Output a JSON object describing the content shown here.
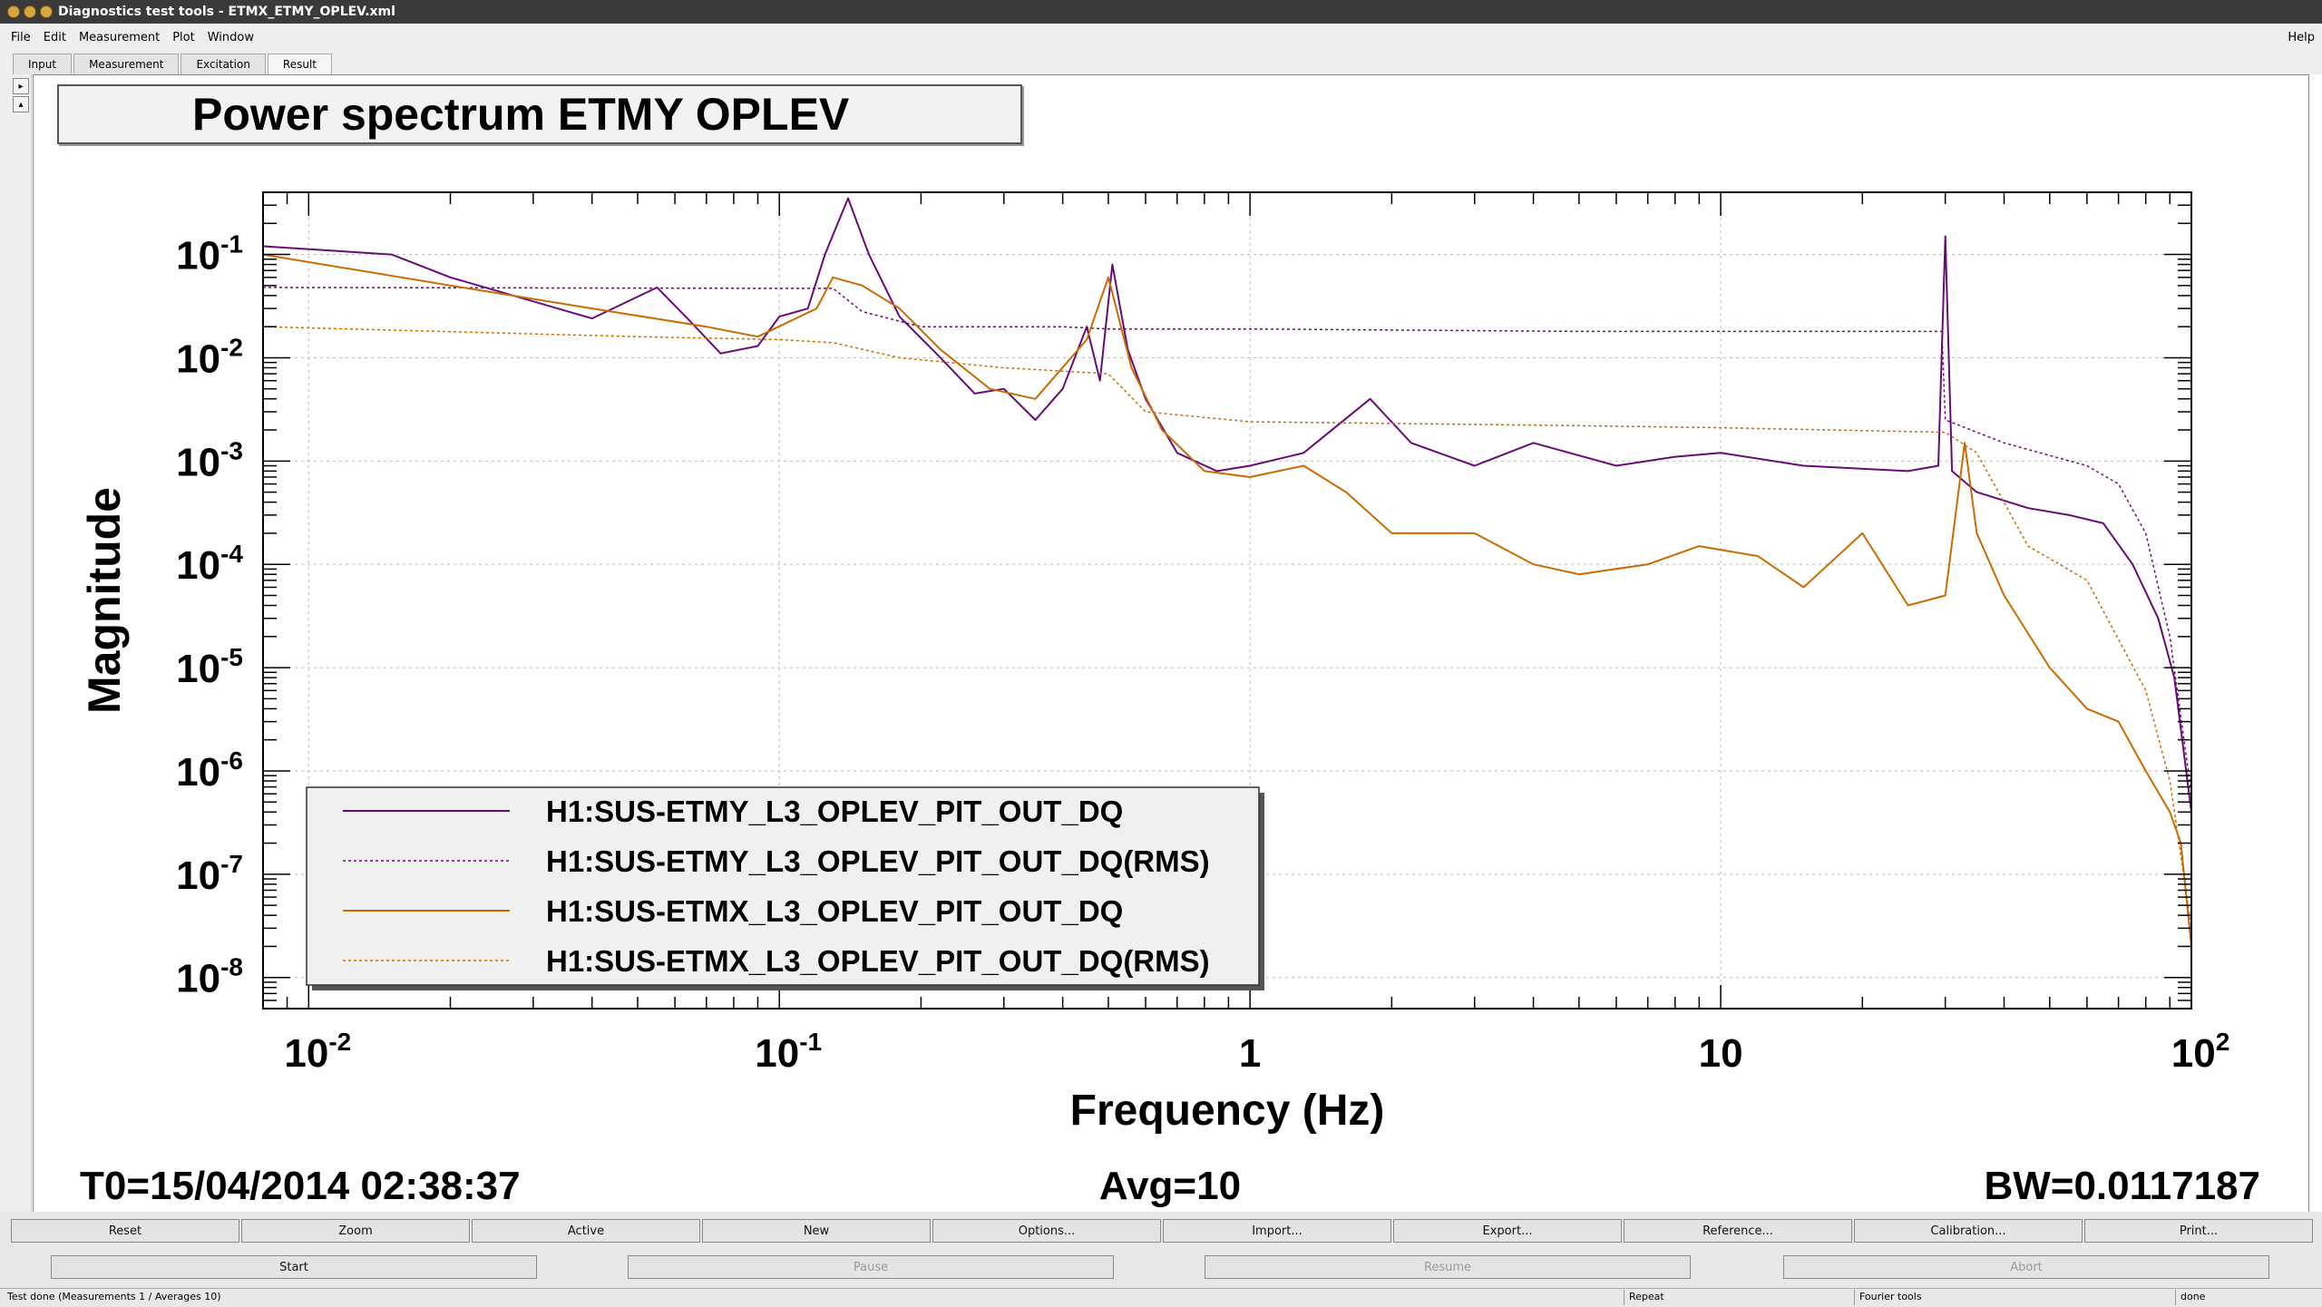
{
  "window": {
    "title": "Diagnostics test tools - ETMX_ETMY_OPLEV.xml"
  },
  "menu": {
    "items": [
      "File",
      "Edit",
      "Measurement",
      "Plot",
      "Window"
    ],
    "help": "Help"
  },
  "tabs": [
    "Input",
    "Measurement",
    "Excitation",
    "Result"
  ],
  "plot": {
    "title": "Power spectrum ETMY OPLEV",
    "footer": {
      "t0": "T0=15/04/2014 02:38:37",
      "avg": "Avg=10",
      "bw": "BW=0.0117187"
    }
  },
  "chart_data": {
    "type": "line",
    "title": "Power spectrum ETMY OPLEV",
    "xlabel": "Frequency (Hz)",
    "ylabel": "Magnitude",
    "xscale": "log",
    "yscale": "log",
    "xlim": [
      0.008,
      100
    ],
    "ylim": [
      5e-09,
      0.4
    ],
    "grid": true,
    "legend_position": "bottom-left",
    "x_ticks": [
      {
        "value": 0.01,
        "base": "10",
        "exp": "-2"
      },
      {
        "value": 0.1,
        "base": "10",
        "exp": "-1"
      },
      {
        "value": 1,
        "base": "1",
        "exp": ""
      },
      {
        "value": 10,
        "base": "10",
        "exp": ""
      },
      {
        "value": 100,
        "base": "10",
        "exp": "2"
      }
    ],
    "y_ticks": [
      {
        "value": 0.1,
        "base": "10",
        "exp": "-1"
      },
      {
        "value": 0.01,
        "base": "10",
        "exp": "-2"
      },
      {
        "value": 0.001,
        "base": "10",
        "exp": "-3"
      },
      {
        "value": 0.0001,
        "base": "10",
        "exp": "-4"
      },
      {
        "value": 1e-05,
        "base": "10",
        "exp": "-5"
      },
      {
        "value": 1e-06,
        "base": "10",
        "exp": "-6"
      },
      {
        "value": 1e-07,
        "base": "10",
        "exp": "-7"
      },
      {
        "value": 1e-08,
        "base": "10",
        "exp": "-8"
      }
    ],
    "series": [
      {
        "name": "H1:SUS-ETMY_L3_OPLEV_PIT_OUT_DQ",
        "color": "#6a0a78",
        "dash": false,
        "width": 2,
        "points": [
          [
            0.008,
            0.12
          ],
          [
            0.015,
            0.1
          ],
          [
            0.02,
            0.06
          ],
          [
            0.04,
            0.024
          ],
          [
            0.055,
            0.048
          ],
          [
            0.065,
            0.022
          ],
          [
            0.075,
            0.011
          ],
          [
            0.09,
            0.013
          ],
          [
            0.1,
            0.025
          ],
          [
            0.115,
            0.03
          ],
          [
            0.125,
            0.1
          ],
          [
            0.14,
            0.35
          ],
          [
            0.155,
            0.1
          ],
          [
            0.18,
            0.025
          ],
          [
            0.22,
            0.01
          ],
          [
            0.26,
            0.0045
          ],
          [
            0.3,
            0.005
          ],
          [
            0.35,
            0.0025
          ],
          [
            0.4,
            0.005
          ],
          [
            0.45,
            0.02
          ],
          [
            0.48,
            0.006
          ],
          [
            0.51,
            0.08
          ],
          [
            0.55,
            0.012
          ],
          [
            0.6,
            0.004
          ],
          [
            0.7,
            0.0012
          ],
          [
            0.85,
            0.0008
          ],
          [
            1,
            0.0009
          ],
          [
            1.3,
            0.0012
          ],
          [
            1.8,
            0.004
          ],
          [
            2.2,
            0.0015
          ],
          [
            3,
            0.0009
          ],
          [
            4,
            0.0015
          ],
          [
            6,
            0.0009
          ],
          [
            8,
            0.0011
          ],
          [
            10,
            0.0012
          ],
          [
            15,
            0.0009
          ],
          [
            25,
            0.0008
          ],
          [
            29,
            0.0009
          ],
          [
            30,
            0.15
          ],
          [
            31,
            0.0008
          ],
          [
            35,
            0.0005
          ],
          [
            45,
            0.00035
          ],
          [
            55,
            0.0003
          ],
          [
            65,
            0.00025
          ],
          [
            75,
            0.0001
          ],
          [
            85,
            3e-05
          ],
          [
            92,
            8e-06
          ],
          [
            100,
            4e-07
          ]
        ]
      },
      {
        "name": "H1:SUS-ETMY_L3_OPLEV_PIT_OUT_DQ(RMS)",
        "color": "#6a0a78",
        "dash": true,
        "width": 1.5,
        "points": [
          [
            0.008,
            0.048
          ],
          [
            0.1,
            0.047
          ],
          [
            0.13,
            0.047
          ],
          [
            0.15,
            0.028
          ],
          [
            0.2,
            0.02
          ],
          [
            0.4,
            0.02
          ],
          [
            0.5,
            0.019
          ],
          [
            1,
            0.019
          ],
          [
            5,
            0.018
          ],
          [
            10,
            0.018
          ],
          [
            29.5,
            0.018
          ],
          [
            30,
            0.0025
          ],
          [
            40,
            0.0015
          ],
          [
            60,
            0.0009
          ],
          [
            70,
            0.0006
          ],
          [
            80,
            0.0002
          ],
          [
            90,
            2e-05
          ],
          [
            100,
            6e-07
          ]
        ]
      },
      {
        "name": "H1:SUS-ETMX_L3_OPLEV_PIT_OUT_DQ",
        "color": "#cc6a00",
        "dash": false,
        "width": 2,
        "points": [
          [
            0.008,
            0.1
          ],
          [
            0.02,
            0.05
          ],
          [
            0.04,
            0.03
          ],
          [
            0.07,
            0.02
          ],
          [
            0.09,
            0.016
          ],
          [
            0.12,
            0.03
          ],
          [
            0.13,
            0.06
          ],
          [
            0.15,
            0.05
          ],
          [
            0.18,
            0.03
          ],
          [
            0.22,
            0.012
          ],
          [
            0.28,
            0.005
          ],
          [
            0.35,
            0.004
          ],
          [
            0.45,
            0.015
          ],
          [
            0.5,
            0.06
          ],
          [
            0.56,
            0.008
          ],
          [
            0.65,
            0.002
          ],
          [
            0.8,
            0.0008
          ],
          [
            1,
            0.0007
          ],
          [
            1.3,
            0.0009
          ],
          [
            1.6,
            0.0005
          ],
          [
            2,
            0.0002
          ],
          [
            3,
            0.0002
          ],
          [
            4,
            0.0001
          ],
          [
            5,
            8e-05
          ],
          [
            7,
            0.0001
          ],
          [
            9,
            0.00015
          ],
          [
            12,
            0.00012
          ],
          [
            15,
            6e-05
          ],
          [
            20,
            0.0002
          ],
          [
            25,
            4e-05
          ],
          [
            30,
            5e-05
          ],
          [
            33,
            0.0015
          ],
          [
            35,
            0.0002
          ],
          [
            40,
            5e-05
          ],
          [
            50,
            1e-05
          ],
          [
            60,
            4e-06
          ],
          [
            70,
            3e-06
          ],
          [
            80,
            1e-06
          ],
          [
            90,
            4e-07
          ],
          [
            95,
            2e-07
          ],
          [
            100,
            2e-08
          ]
        ]
      },
      {
        "name": "H1:SUS-ETMX_L3_OPLEV_PIT_OUT_DQ(RMS)",
        "color": "#cc6a00",
        "dash": true,
        "width": 1.5,
        "points": [
          [
            0.008,
            0.02
          ],
          [
            0.05,
            0.016
          ],
          [
            0.1,
            0.015
          ],
          [
            0.13,
            0.014
          ],
          [
            0.18,
            0.01
          ],
          [
            0.3,
            0.008
          ],
          [
            0.5,
            0.007
          ],
          [
            0.6,
            0.003
          ],
          [
            1,
            0.0024
          ],
          [
            5,
            0.0022
          ],
          [
            10,
            0.0021
          ],
          [
            30,
            0.0019
          ],
          [
            35,
            0.0012
          ],
          [
            45,
            0.00015
          ],
          [
            60,
            7e-05
          ],
          [
            80,
            6e-06
          ],
          [
            90,
            8e-07
          ],
          [
            100,
            3e-08
          ]
        ]
      }
    ]
  },
  "buttons1": [
    "Reset",
    "Zoom",
    "Active",
    "New",
    "Options...",
    "Import...",
    "Export...",
    "Reference...",
    "Calibration...",
    "Print..."
  ],
  "buttons2": [
    "Start",
    "Pause",
    "Resume",
    "Abort"
  ],
  "status": [
    "Test done (Measurements 1 / Averages 10)",
    "Repeat",
    "Fourier tools",
    "done"
  ]
}
